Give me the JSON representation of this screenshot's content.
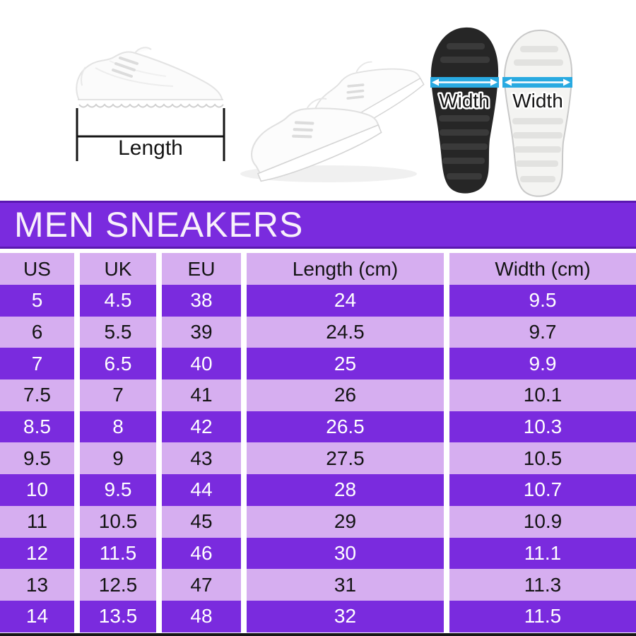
{
  "colors": {
    "purple": "#7a2bde",
    "lavender": "#d6aef0",
    "banner-edge": "#5a18b0",
    "blue": "#29aae1",
    "ink": "#141414",
    "bottom-strip": "#161616"
  },
  "hero": {
    "length_label": "Length",
    "width_label_black_sole": "Width",
    "width_label_white_sole": "Width"
  },
  "banner": {
    "title": "MEN SNEAKERS"
  },
  "table": {
    "columns": [
      "US",
      "UK",
      "EU",
      "Length (cm)",
      "Width (cm)"
    ],
    "rows": [
      [
        "5",
        "4.5",
        "38",
        "24",
        "9.5"
      ],
      [
        "6",
        "5.5",
        "39",
        "24.5",
        "9.7"
      ],
      [
        "7",
        "6.5",
        "40",
        "25",
        "9.9"
      ],
      [
        "7.5",
        "7",
        "41",
        "26",
        "10.1"
      ],
      [
        "8.5",
        "8",
        "42",
        "26.5",
        "10.3"
      ],
      [
        "9.5",
        "9",
        "43",
        "27.5",
        "10.5"
      ],
      [
        "10",
        "9.5",
        "44",
        "28",
        "10.7"
      ],
      [
        "11",
        "10.5",
        "45",
        "29",
        "10.9"
      ],
      [
        "12",
        "11.5",
        "46",
        "30",
        "11.1"
      ],
      [
        "13",
        "12.5",
        "47",
        "31",
        "11.3"
      ],
      [
        "14",
        "13.5",
        "48",
        "32",
        "11.5"
      ]
    ]
  }
}
